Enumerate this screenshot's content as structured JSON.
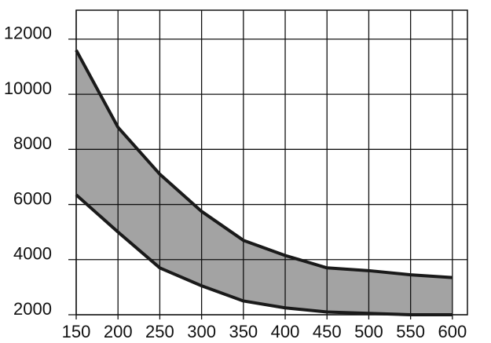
{
  "chart_data": {
    "type": "band",
    "x": [
      150,
      200,
      250,
      300,
      350,
      400,
      450,
      500,
      550,
      600
    ],
    "series": [
      {
        "color": "#1a1a1a",
        "values": [
          11600,
          8800,
          7100,
          5750,
          4700,
          4150,
          3700,
          3600,
          3450,
          3350
        ]
      },
      {
        "color": "#1a1a1a",
        "values": [
          6350,
          5000,
          3700,
          3050,
          2500,
          2250,
          2100,
          2050,
          2000,
          2000
        ]
      }
    ],
    "fill": "#a3a3a3",
    "xlim": [
      150,
      618
    ],
    "ylim": [
      2000,
      13050
    ],
    "xticks": [
      150,
      200,
      250,
      300,
      350,
      400,
      450,
      500,
      550,
      600
    ],
    "yticks": [
      2000,
      4000,
      6000,
      8000,
      10000,
      12000
    ],
    "grid": true
  }
}
